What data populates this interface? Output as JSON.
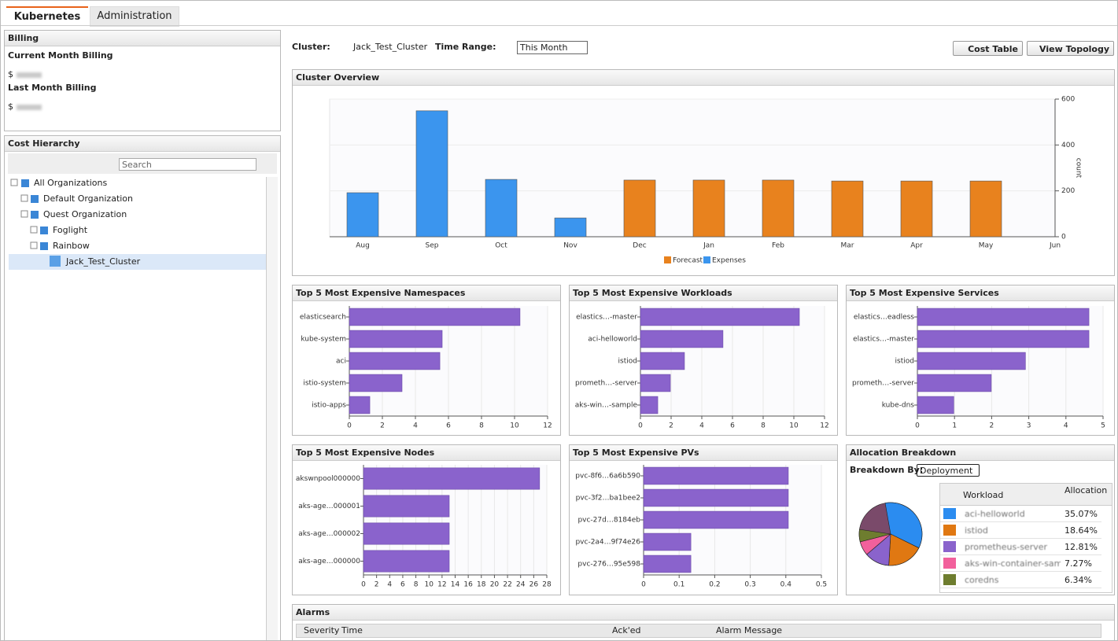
{
  "tabs": [
    "Kubernetes",
    "Administration"
  ],
  "billing": {
    "title": "Billing",
    "current_label": "Current Month Billing",
    "last_label": "Last Month Billing",
    "currency": "$"
  },
  "cost_hierarchy": {
    "title": "Cost Hierarchy",
    "search_placeholder": "Search",
    "tree": [
      "All Organizations",
      "Default Organization",
      "Quest Organization",
      "Foglight",
      "Rainbow",
      "Jack_Test_Cluster"
    ]
  },
  "toolbar": {
    "cluster_label": "Cluster:",
    "cluster": "Jack_Test_Cluster",
    "time_range_label": "Time Range:",
    "time_range": "This Month",
    "buttons": [
      "Cost Table",
      "View Topology"
    ]
  },
  "chart_data": [
    {
      "type": "bar",
      "title": "Cluster Overview",
      "y_label": "count",
      "categories": [
        "Aug",
        "Sep",
        "Oct",
        "Nov",
        "Dec",
        "Jan",
        "Feb",
        "Mar",
        "Apr",
        "May",
        "Jun"
      ],
      "series": [
        {
          "name": "Forecast",
          "color": "#e8821e",
          "values": [
            null,
            null,
            null,
            null,
            247,
            247,
            247,
            243,
            243,
            243,
            null
          ]
        },
        {
          "name": "Expenses",
          "color": "#3b95ee",
          "values": [
            192,
            549,
            250,
            82,
            null,
            null,
            null,
            null,
            null,
            null,
            null
          ]
        }
      ],
      "ylim": [
        0,
        600
      ],
      "yticks": [
        0,
        200,
        400,
        600
      ],
      "grid": true
    },
    {
      "type": "barh",
      "title": "Top 5 Most Expensive Namespaces",
      "color": "#8a63cc",
      "categories": [
        "elasticsearch",
        "kube-system",
        "aci",
        "istio-system",
        "istio-apps"
      ],
      "values": [
        10.33,
        5.62,
        5.48,
        3.19,
        1.24
      ],
      "xlim": [
        0,
        12
      ],
      "xticks": [
        0,
        2,
        4,
        6,
        8,
        10,
        12
      ],
      "grid": true
    },
    {
      "type": "barh",
      "title": "Top 5 Most Expensive Workloads",
      "color": "#8a63cc",
      "categories": [
        "elastics…-master",
        "aci-helloworld",
        "istiod",
        "prometh…-server",
        "aks-win…-sample"
      ],
      "values": [
        10.36,
        5.38,
        2.87,
        1.95,
        1.13
      ],
      "xlim": [
        0,
        12
      ],
      "xticks": [
        0,
        2,
        4,
        6,
        8,
        10,
        12
      ],
      "grid": true
    },
    {
      "type": "barh",
      "title": "Top 5 Most Expensive Services",
      "color": "#8a63cc",
      "categories": [
        "elastics…eadless",
        "elastics…-master",
        "istiod",
        "prometh…-server",
        "kube-dns"
      ],
      "values": [
        4.62,
        4.62,
        2.91,
        1.99,
        0.98
      ],
      "xlim": [
        0,
        5
      ],
      "xticks": [
        0,
        1,
        2,
        3,
        4,
        5
      ],
      "grid": true
    },
    {
      "type": "barh",
      "title": "Top 5 Most Expensive Nodes",
      "color": "#8a63cc",
      "categories": [
        "akswnpool000000",
        "aks-age…000001",
        "aks-age…000002",
        "aks-age…000000"
      ],
      "values": [
        26.9,
        13.1,
        13.1,
        13.1
      ],
      "xlim": [
        0,
        28
      ],
      "xticks": [
        0,
        2,
        4,
        6,
        8,
        10,
        12,
        14,
        16,
        18,
        20,
        22,
        24,
        26,
        28
      ],
      "grid": true
    },
    {
      "type": "barh",
      "title": "Top 5 Most Expensive PVs",
      "color": "#8a63cc",
      "categories": [
        "pvc-8f6…6a6b590",
        "pvc-3f2…ba1bee2",
        "pvc-27d…8184eb",
        "pvc-2a4…9f74e26",
        "pvc-276…95e598"
      ],
      "values": [
        0.407,
        0.407,
        0.407,
        0.133,
        0.133
      ],
      "xlim": [
        0,
        0.5
      ],
      "xticks": [
        0,
        0.1,
        0.2,
        0.3,
        0.4,
        0.5
      ],
      "grid": true
    },
    {
      "type": "pie",
      "title": "Allocation Breakdown",
      "categories": [
        "aci-helloworld",
        "istiod",
        "prometheus-server",
        "aks-win-container-sample",
        "coredns"
      ],
      "values": [
        35.07,
        18.64,
        12.81,
        7.27,
        6.34
      ],
      "value_labels": [
        "35.07%",
        "18.64%",
        "12.81%",
        "7.27%",
        "6.34%"
      ],
      "colors": [
        "#2b8cf0",
        "#e07812",
        "#8a63cc",
        "#f2609c",
        "#6e7d2f"
      ]
    }
  ],
  "allocation": {
    "breakdown_label": "Breakdown By:",
    "breakdown": "Deployment",
    "columns": [
      "Workload",
      "Allocation"
    ]
  },
  "alarms": {
    "title": "Alarms",
    "columns": [
      "Severity",
      "Time",
      "Ack'ed",
      "Alarm Message"
    ]
  }
}
